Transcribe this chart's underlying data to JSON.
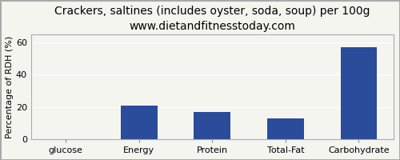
{
  "title": "Crackers, saltines (includes oyster, soda, soup) per 100g",
  "subtitle": "www.dietandfitnesstoday.com",
  "categories": [
    "glucose",
    "Energy",
    "Protein",
    "Total-Fat",
    "Carbohydrate"
  ],
  "values": [
    0,
    21,
    17,
    13,
    57
  ],
  "bar_color": "#2b4b9b",
  "ylabel": "Percentage of RDH (%)",
  "ylim": [
    0,
    65
  ],
  "yticks": [
    0,
    20,
    40,
    60
  ],
  "background_color": "#f5f5f0",
  "title_fontsize": 10,
  "subtitle_fontsize": 9,
  "ylabel_fontsize": 8,
  "tick_fontsize": 8
}
